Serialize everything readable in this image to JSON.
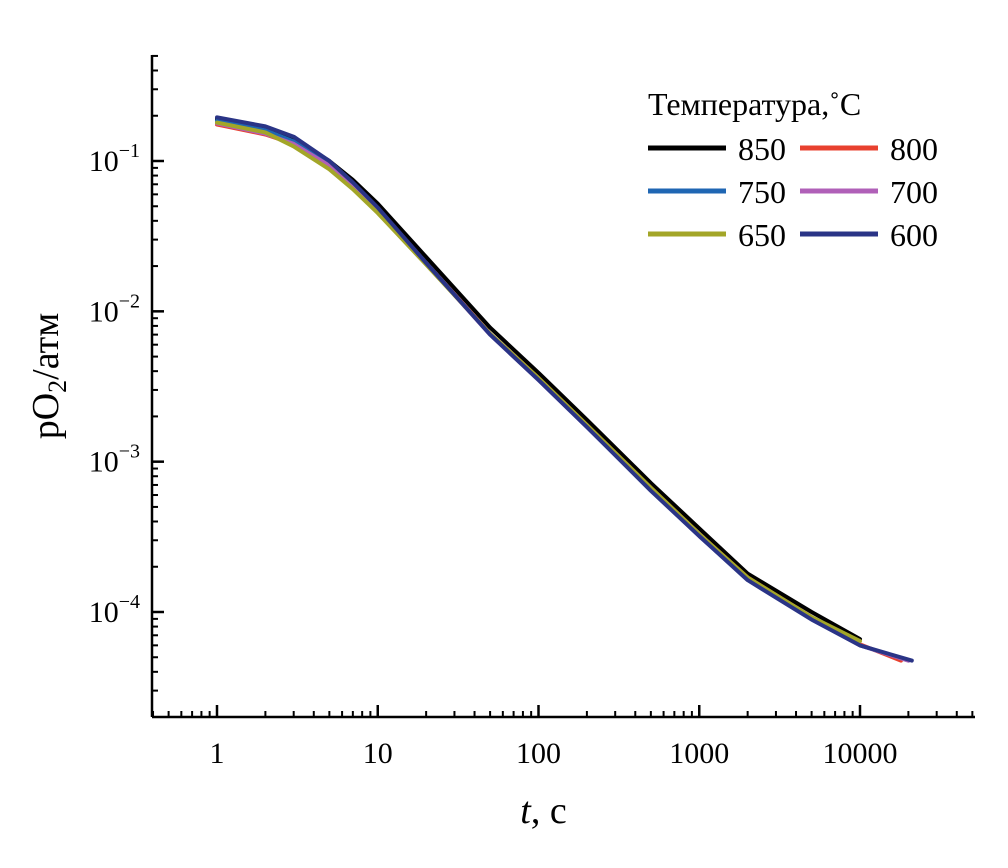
{
  "chart_data": {
    "type": "line",
    "title": "",
    "xlabel_italic": "t",
    "xlabel_rest": ", с",
    "ylabel_main": "pO",
    "ylabel_sub": "2",
    "ylabel_rest": "/атм",
    "x_scale": "log",
    "y_scale": "log",
    "xlim": [
      0.4,
      50000
    ],
    "ylim": [
      2e-05,
      0.7
    ],
    "x_ticks": [
      {
        "value": 1,
        "label": "1"
      },
      {
        "value": 10,
        "label": "10"
      },
      {
        "value": 100,
        "label": "100"
      },
      {
        "value": 1000,
        "label": "1000"
      },
      {
        "value": 10000,
        "label": "10000"
      }
    ],
    "y_ticks": [
      {
        "value": 0.1,
        "base": "10",
        "exp": "−1"
      },
      {
        "value": 0.01,
        "base": "10",
        "exp": "−2"
      },
      {
        "value": 0.001,
        "base": "10",
        "exp": "−3"
      },
      {
        "value": 0.0001,
        "base": "10",
        "exp": "−4"
      }
    ],
    "grid": false,
    "legend": {
      "title": "Температура,˚C",
      "placement": "top-right",
      "columns": 2
    },
    "series": [
      {
        "name": "850",
        "color": "#000000",
        "x": [
          1,
          2,
          3,
          5,
          7,
          10,
          20,
          50,
          100,
          200,
          500,
          1000,
          2000,
          5000,
          10000
        ],
        "y": [
          0.19,
          0.165,
          0.14,
          0.1,
          0.075,
          0.052,
          0.023,
          0.0078,
          0.0039,
          0.0019,
          0.00072,
          0.00036,
          0.00018,
          0.0001,
          6.6e-05
        ]
      },
      {
        "name": "800",
        "color": "#e8412f",
        "x": [
          1,
          2,
          3,
          5,
          7,
          10,
          20,
          50,
          100,
          200,
          500,
          1000,
          2000,
          5000,
          10000,
          18000
        ],
        "y": [
          0.175,
          0.15,
          0.13,
          0.095,
          0.07,
          0.048,
          0.021,
          0.0071,
          0.0036,
          0.00175,
          0.00067,
          0.00033,
          0.00017,
          9.25e-05,
          6.1e-05,
          4.75e-05
        ]
      },
      {
        "name": "750",
        "color": "#1f66b3",
        "x": [
          1,
          2,
          3,
          5,
          7,
          10,
          20,
          50,
          100,
          200,
          500,
          1000,
          2000,
          5000,
          10000,
          20000
        ],
        "y": [
          0.185,
          0.16,
          0.135,
          0.095,
          0.07,
          0.048,
          0.021,
          0.007,
          0.0035,
          0.0017,
          0.00065,
          0.00032,
          0.000165,
          9e-05,
          6e-05,
          4.75e-05
        ]
      },
      {
        "name": "700",
        "color": "#b060b8",
        "x": [
          1,
          2,
          3,
          5,
          7,
          10,
          20,
          50,
          100,
          200,
          500,
          1000,
          2000,
          5000,
          10000,
          20000
        ],
        "y": [
          0.178,
          0.152,
          0.13,
          0.093,
          0.068,
          0.047,
          0.0208,
          0.007,
          0.0035,
          0.0017,
          0.00065,
          0.00032,
          0.000165,
          9e-05,
          6e-05,
          4.75e-05
        ]
      },
      {
        "name": "650",
        "color": "#a3a628",
        "x": [
          1,
          2,
          3,
          5,
          7,
          10,
          20,
          50,
          100,
          200,
          500,
          1000,
          2000,
          5000,
          10000
        ],
        "y": [
          0.18,
          0.155,
          0.125,
          0.088,
          0.065,
          0.045,
          0.0205,
          0.0071,
          0.0036,
          0.00175,
          0.00067,
          0.00033,
          0.00017,
          9.25e-05,
          6.4e-05
        ]
      },
      {
        "name": "600",
        "color": "#2a3486",
        "x": [
          1,
          2,
          3,
          5,
          7,
          10,
          20,
          50,
          100,
          200,
          500,
          1000,
          2000,
          5000,
          10000,
          21000
        ],
        "y": [
          0.195,
          0.17,
          0.145,
          0.1,
          0.072,
          0.049,
          0.021,
          0.007,
          0.0035,
          0.0017,
          0.00064,
          0.00032,
          0.000163,
          8.9e-05,
          6e-05,
          4.75e-05
        ]
      }
    ]
  }
}
